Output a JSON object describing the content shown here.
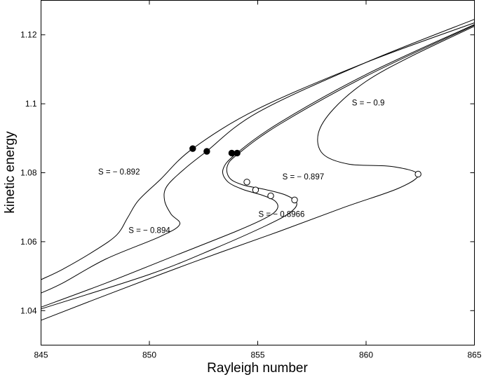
{
  "chart_data": {
    "type": "line",
    "xlabel": "Rayleigh number",
    "ylabel": "kinetic energy",
    "xlim": [
      845,
      865
    ],
    "ylim": [
      1.03,
      1.13
    ],
    "xticks": [
      845,
      850,
      855,
      860,
      865
    ],
    "yticks": [
      1.04,
      1.06,
      1.08,
      1.1,
      1.12
    ],
    "xtick_labels": [
      "845",
      "850",
      "855",
      "860",
      "865"
    ],
    "ytick_labels": [
      "1.04",
      "1.06",
      "1.08",
      "1.1",
      "1.12"
    ],
    "grid": false,
    "legend": "none",
    "line_color": "#000000",
    "series": [
      {
        "name": "S = − 0.892",
        "x": [
          865,
          860,
          855,
          852,
          850.5,
          849.5,
          849,
          848.5,
          847.5,
          846,
          845
        ],
        "y": [
          1.1235,
          1.112,
          1.0985,
          1.087,
          1.078,
          1.072,
          1.067,
          1.062,
          1.0575,
          1.052,
          1.049
        ],
        "label_at": [
          848.6,
          1.0795
        ]
      },
      {
        "name": "S = − 0.894",
        "x": [
          865,
          860,
          855,
          852.6,
          851.6,
          850.8,
          850.7,
          851,
          851.4,
          850.5,
          848,
          846,
          845
        ],
        "y": [
          1.1245,
          1.112,
          1.0975,
          1.086,
          1.081,
          1.076,
          1.072,
          1.068,
          1.065,
          1.0615,
          1.055,
          1.048,
          1.0451
        ],
        "label_at": [
          850,
          1.0625
        ]
      },
      {
        "name": "S = − 0.8966",
        "x": [
          865,
          860,
          856,
          854,
          853.4,
          853.6,
          854.3,
          855.2,
          855.8,
          855.9,
          855.4,
          854,
          851,
          848,
          845
        ],
        "y": [
          1.123,
          1.1085,
          1.0945,
          1.0855,
          1.081,
          1.0775,
          1.0752,
          1.0735,
          1.0718,
          1.0695,
          1.067,
          1.063,
          1.0555,
          1.048,
          1.041
        ],
        "label_at": [
          856.1,
          1.0672
        ]
      },
      {
        "name": "S = − 0.897",
        "x": [
          865,
          860,
          856,
          854.1,
          853.6,
          853.7,
          854.3,
          855.3,
          856.3,
          856.8,
          856.5,
          855.5,
          853,
          850,
          845
        ],
        "y": [
          1.1228,
          1.108,
          1.094,
          1.0855,
          1.082,
          1.0785,
          1.0765,
          1.0752,
          1.0735,
          1.0712,
          1.0685,
          1.065,
          1.058,
          1.0505,
          1.0405
        ],
        "label_at": [
          857.1,
          1.0781
        ]
      },
      {
        "name": "S = − 0.9",
        "x": [
          865,
          862,
          860,
          858.5,
          857.8,
          858,
          859.2,
          861.2,
          862.4,
          861.5,
          859,
          856,
          852,
          848,
          845
        ],
        "y": [
          1.1225,
          1.1135,
          1.1065,
          1.0985,
          1.0915,
          1.0855,
          1.0825,
          1.0818,
          1.0795,
          1.0755,
          1.07,
          1.063,
          1.054,
          1.0445,
          1.0372
        ],
        "label_at": [
          860.1,
          1.0995
        ]
      }
    ],
    "filled_markers": {
      "x": [
        852,
        852.65,
        853.8,
        854.05
      ],
      "y": [
        1.087,
        1.0862,
        1.0857,
        1.0857
      ]
    },
    "open_markers": {
      "x": [
        854.5,
        854.9,
        855.6,
        856.7,
        862.4
      ],
      "y": [
        1.0773,
        1.075,
        1.0733,
        1.0721,
        1.0796
      ]
    }
  }
}
